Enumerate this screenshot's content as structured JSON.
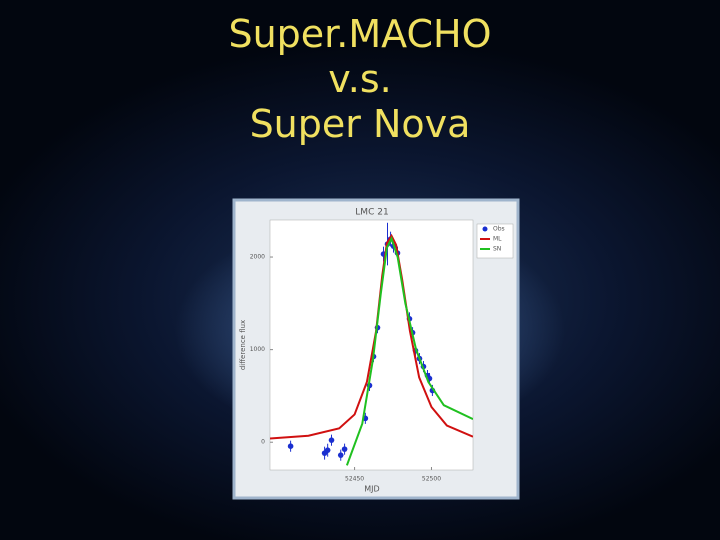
{
  "slide": {
    "title": [
      "Super.MACHO",
      "v.s.",
      "Super Nova"
    ]
  },
  "chart_data": {
    "type": "scatter",
    "title": "LMC 21",
    "xlabel": "MJD",
    "ylabel": "difference flux",
    "xlim": [
      52395,
      52527
    ],
    "ylim": [
      -300,
      2400
    ],
    "xticks": [
      52450,
      52500
    ],
    "yticks": [
      0,
      1000,
      2000
    ],
    "legend": "top-right",
    "series": [
      {
        "name": "Obs",
        "kind": "points",
        "color": "#1a2fd0",
        "x": [
          52408.4,
          52430.5,
          52432.5,
          52435,
          52441,
          52443.5,
          52457,
          52459.7,
          52462.3,
          52464.9,
          52468.8,
          52471.4,
          52473.4,
          52475.3,
          52477.9,
          52485.7,
          52487.7,
          52489.6,
          52492.2,
          52494.8,
          52497.4,
          52498.7,
          52500.6
        ],
        "values": [
          -43,
          -118,
          -86,
          22,
          -140,
          -75,
          258,
          613,
          925,
          1237,
          2032,
          2140,
          2194,
          2118,
          2043,
          1333,
          1183,
          989,
          903,
          817,
          720,
          688,
          559
        ],
        "errors": [
          60,
          70,
          70,
          60,
          60,
          60,
          60,
          60,
          60,
          60,
          80,
          230,
          80,
          70,
          70,
          70,
          60,
          60,
          60,
          60,
          60,
          60,
          60
        ]
      },
      {
        "name": "ML",
        "kind": "line",
        "color": "#d01010",
        "x": [
          52395,
          52420,
          52440,
          52450,
          52458,
          52464,
          52468,
          52471,
          52474,
          52477,
          52481,
          52486,
          52492,
          52500,
          52510,
          52527
        ],
        "values": [
          40,
          70,
          150,
          300,
          650,
          1200,
          1800,
          2150,
          2230,
          2130,
          1750,
          1200,
          700,
          380,
          180,
          60
        ]
      },
      {
        "name": "SN",
        "kind": "line",
        "color": "#20c020",
        "x": [
          52445,
          52455,
          52462,
          52467,
          52471,
          52474,
          52478,
          52483,
          52490,
          52498,
          52508,
          52527
        ],
        "values": [
          -250,
          200,
          900,
          1600,
          2100,
          2200,
          2000,
          1500,
          1000,
          650,
          400,
          250
        ]
      }
    ]
  }
}
